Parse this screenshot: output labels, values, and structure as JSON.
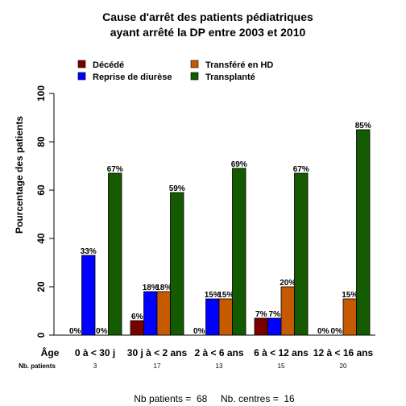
{
  "chart_data": {
    "type": "bar",
    "title": [
      "Cause d'arrêt des patients pédiatriques",
      "ayant arrêté la DP entre 2003 et 2010"
    ],
    "ylabel": "Pourcentage des patients",
    "xlabel_row_label": "Âge",
    "patients_row_label": "Nb. patients",
    "ylim": [
      0,
      100
    ],
    "yticks": [
      0,
      20,
      40,
      60,
      80,
      100
    ],
    "categories": [
      "0 à < 30 j",
      "30 j à < 2 ans",
      "2 à < 6 ans",
      "6 à < 12 ans",
      "12 à < 16 ans"
    ],
    "nb_patients": [
      "3",
      "17",
      "13",
      "15",
      "20"
    ],
    "legend_position": "top",
    "series": [
      {
        "name": "Décédé",
        "color": "#7a0000",
        "values": [
          0,
          6,
          0,
          7,
          0
        ],
        "labels": [
          "0%",
          "6%",
          "0%",
          "7%",
          "0%"
        ]
      },
      {
        "name": "Reprise de diurèse",
        "color": "#0000ff",
        "values": [
          33,
          18,
          15,
          7,
          0
        ],
        "labels": [
          "33%",
          "18%",
          "15%",
          "7%",
          "0%"
        ]
      },
      {
        "name": "Transféré en HD",
        "color": "#c55a00",
        "values": [
          0,
          18,
          15,
          20,
          15
        ],
        "labels": [
          "0%",
          "18%",
          "15%",
          "20%",
          "15%"
        ]
      },
      {
        "name": "Transplanté",
        "color": "#145a00",
        "values": [
          67,
          59,
          69,
          67,
          85
        ],
        "labels": [
          "67%",
          "59%",
          "69%",
          "67%",
          "85%"
        ]
      }
    ],
    "footer": "Nb patients =  68     Nb. centres =  16"
  }
}
